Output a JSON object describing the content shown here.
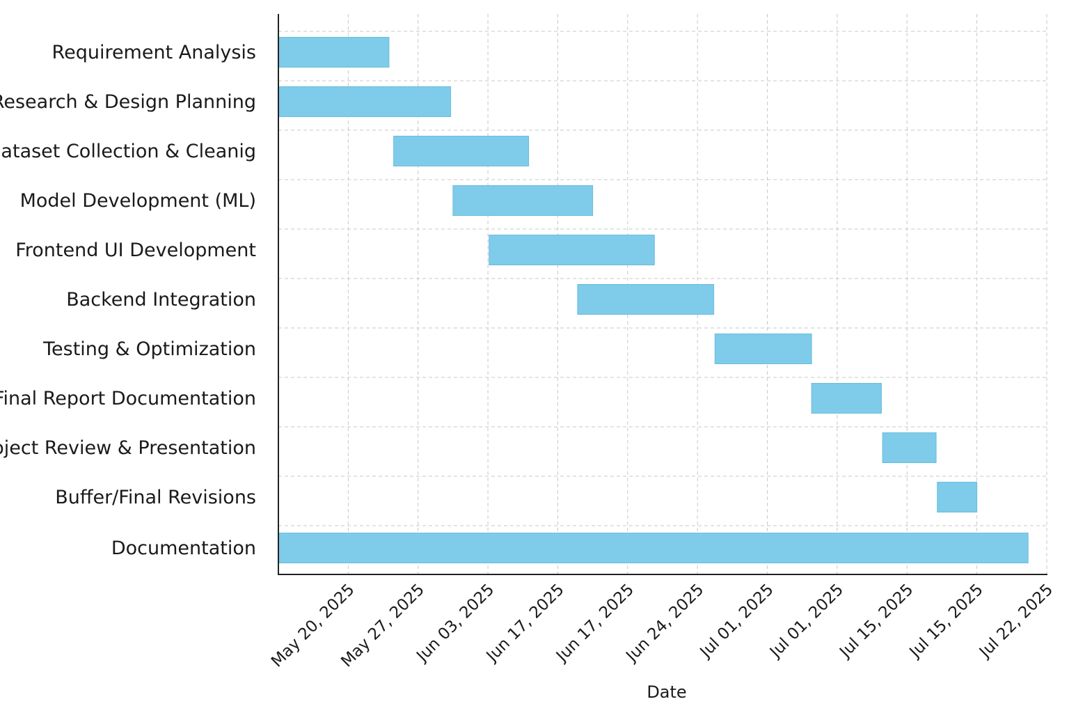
{
  "chart_data": {
    "type": "gantt",
    "title": "",
    "xlabel": "Date",
    "ylabel": "",
    "grid": true,
    "bar_color": "#7ecbea",
    "bar_edge_color": "#6cbcdc",
    "x_domain_days": [
      0,
      66
    ],
    "x_ticks": [
      {
        "label": "May 20, 2025",
        "day": 6
      },
      {
        "label": "May 27, 2025",
        "day": 12
      },
      {
        "label": "Jun 03, 2025",
        "day": 18
      },
      {
        "label": "Jun 17, 2025",
        "day": 24
      },
      {
        "label": "Jun 17, 2025",
        "day": 30
      },
      {
        "label": "Jun 24, 2025",
        "day": 36
      },
      {
        "label": "Jul 01, 2025",
        "day": 42
      },
      {
        "label": "Jul 01, 2025",
        "day": 48
      },
      {
        "label": "Jul 15, 2025",
        "day": 54
      },
      {
        "label": "Jul 15, 2025",
        "day": 60
      },
      {
        "label": "Jul 22, 2025",
        "day": 66
      }
    ],
    "tasks": [
      {
        "name": "Requirement Analysis",
        "start_day": 0,
        "end_day": 9.5
      },
      {
        "name": "Research & Design Planning",
        "start_day": 0,
        "end_day": 14.8
      },
      {
        "name": "Dataset Collection & Cleanig",
        "start_day": 9.9,
        "end_day": 21.5
      },
      {
        "name": "Model Development (ML)",
        "start_day": 15.0,
        "end_day": 27.0
      },
      {
        "name": "Frontend UI Development",
        "start_day": 18.1,
        "end_day": 32.3
      },
      {
        "name": "Backend Integration",
        "start_day": 25.7,
        "end_day": 37.4
      },
      {
        "name": "Testing & Optimization",
        "start_day": 37.5,
        "end_day": 45.8
      },
      {
        "name": "Final Report Documentation",
        "start_day": 45.8,
        "end_day": 51.8
      },
      {
        "name": "Project Review & Presentation",
        "start_day": 51.9,
        "end_day": 56.5
      },
      {
        "name": "Buffer/Final Revisions",
        "start_day": 56.6,
        "end_day": 60.0
      },
      {
        "name": "Documentation",
        "start_day": 0,
        "end_day": 64.4
      }
    ]
  }
}
